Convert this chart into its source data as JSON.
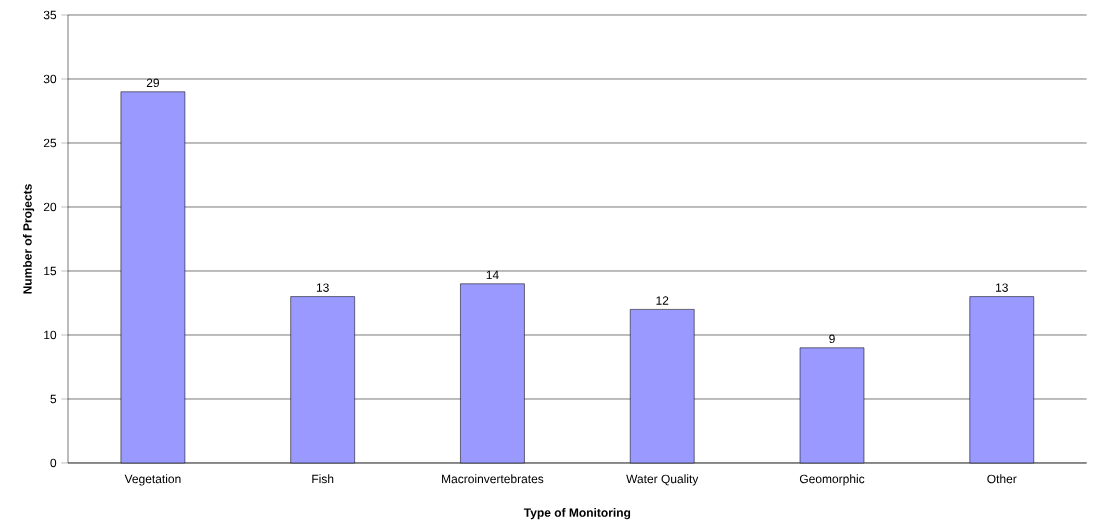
{
  "chart_data": {
    "type": "bar",
    "xlabel": "Type of Monitoring",
    "ylabel": "Number of Projects",
    "categories": [
      "Vegetation",
      "Fish",
      "Macroinvertebrates",
      "Water Quality",
      "Geomorphic",
      "Other"
    ],
    "values": [
      29,
      13,
      14,
      12,
      9,
      13
    ],
    "color": "#9999ff",
    "ylim": [
      0,
      35
    ],
    "yticks": [
      0,
      5,
      10,
      15,
      20,
      25,
      30,
      35
    ],
    "grid": "y",
    "data_labels": true
  }
}
